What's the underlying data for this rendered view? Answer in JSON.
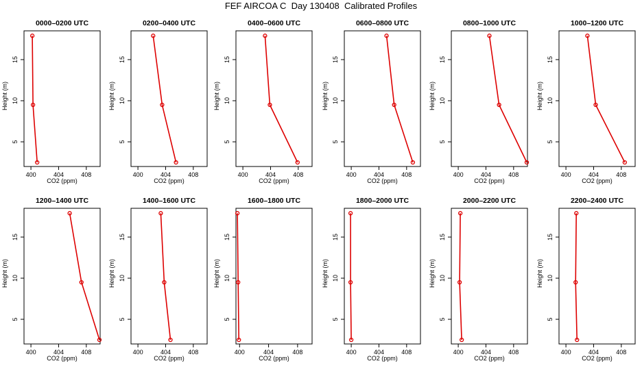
{
  "title": "FEF AIRCOA C  Day 130408  Calibrated Profiles",
  "colors": {
    "series": "#dd0000",
    "axis": "#000000"
  },
  "chart_data": [
    {
      "type": "line",
      "title": "0000–0200 UTC",
      "xlabel": "CO2 (ppm)",
      "ylabel": "Height (m)",
      "xlim": [
        399,
        410
      ],
      "ylim": [
        2,
        18.5
      ],
      "xticks": [
        "400",
        "404",
        "408"
      ],
      "yticks": [
        "5",
        "10",
        "15"
      ],
      "x": [
        400.2,
        400.3,
        400.9
      ],
      "y": [
        17.9,
        9.5,
        2.5
      ]
    },
    {
      "type": "line",
      "title": "0200–0400 UTC",
      "xlabel": "CO2 (ppm)",
      "ylabel": "Height (m)",
      "xlim": [
        399,
        410
      ],
      "ylim": [
        2,
        18.5
      ],
      "xticks": [
        "400",
        "404",
        "408"
      ],
      "yticks": [
        "5",
        "10",
        "15"
      ],
      "x": [
        402.2,
        403.5,
        405.5
      ],
      "y": [
        17.9,
        9.5,
        2.5
      ]
    },
    {
      "type": "line",
      "title": "0400–0600 UTC",
      "xlabel": "CO2 (ppm)",
      "ylabel": "Height (m)",
      "xlim": [
        399,
        410
      ],
      "ylim": [
        2,
        18.5
      ],
      "xticks": [
        "400",
        "404",
        "408"
      ],
      "yticks": [
        "5",
        "10",
        "15"
      ],
      "x": [
        403.2,
        403.9,
        407.9
      ],
      "y": [
        17.9,
        9.5,
        2.5
      ]
    },
    {
      "type": "line",
      "title": "0600–0800 UTC",
      "xlabel": "CO2 (ppm)",
      "ylabel": "Height (m)",
      "xlim": [
        399,
        410
      ],
      "ylim": [
        2,
        18.5
      ],
      "xticks": [
        "400",
        "404",
        "408"
      ],
      "yticks": [
        "5",
        "10",
        "15"
      ],
      "x": [
        405.1,
        406.2,
        408.9
      ],
      "y": [
        17.9,
        9.5,
        2.5
      ]
    },
    {
      "type": "line",
      "title": "0800–1000 UTC",
      "xlabel": "CO2 (ppm)",
      "ylabel": "Height (m)",
      "xlim": [
        399,
        410
      ],
      "ylim": [
        2,
        18.5
      ],
      "xticks": [
        "400",
        "404",
        "408"
      ],
      "yticks": [
        "5",
        "10",
        "15"
      ],
      "x": [
        404.5,
        405.9,
        409.9
      ],
      "y": [
        17.9,
        9.5,
        2.5
      ]
    },
    {
      "type": "line",
      "title": "1000–1200 UTC",
      "xlabel": "CO2 (ppm)",
      "ylabel": "Height (m)",
      "xlim": [
        399,
        410
      ],
      "ylim": [
        2,
        18.5
      ],
      "xticks": [
        "400",
        "404",
        "408"
      ],
      "yticks": [
        "5",
        "10",
        "15"
      ],
      "x": [
        403.1,
        404.3,
        408.5
      ],
      "y": [
        17.9,
        9.5,
        2.5
      ]
    },
    {
      "type": "line",
      "title": "1200–1400 UTC",
      "xlabel": "CO2 (ppm)",
      "ylabel": "Height (m)",
      "xlim": [
        399,
        410
      ],
      "ylim": [
        2,
        18.5
      ],
      "xticks": [
        "400",
        "404",
        "408"
      ],
      "yticks": [
        "5",
        "10",
        "15"
      ],
      "x": [
        405.6,
        407.3,
        409.9
      ],
      "y": [
        17.9,
        9.5,
        2.5
      ]
    },
    {
      "type": "line",
      "title": "1400–1600 UTC",
      "xlabel": "CO2 (ppm)",
      "ylabel": "Height (m)",
      "xlim": [
        399,
        410
      ],
      "ylim": [
        2,
        18.5
      ],
      "xticks": [
        "400",
        "404",
        "408"
      ],
      "yticks": [
        "5",
        "10",
        "15"
      ],
      "x": [
        403.3,
        403.8,
        404.7
      ],
      "y": [
        17.9,
        9.5,
        2.5
      ]
    },
    {
      "type": "line",
      "title": "1600–1800 UTC",
      "xlabel": "CO2 (ppm)",
      "ylabel": "Height (m)",
      "xlim": [
        399.5,
        410
      ],
      "ylim": [
        2,
        18.5
      ],
      "xticks": [
        "400",
        "404",
        "408"
      ],
      "yticks": [
        "5",
        "10",
        "15"
      ],
      "x": [
        399.7,
        399.8,
        399.9
      ],
      "y": [
        17.9,
        9.5,
        2.5
      ]
    },
    {
      "type": "line",
      "title": "1800–2000 UTC",
      "xlabel": "CO2 (ppm)",
      "ylabel": "Height (m)",
      "xlim": [
        399,
        410
      ],
      "ylim": [
        2,
        18.5
      ],
      "xticks": [
        "400",
        "404",
        "408"
      ],
      "yticks": [
        "5",
        "10",
        "15"
      ],
      "x": [
        399.9,
        399.9,
        400.0
      ],
      "y": [
        17.9,
        9.5,
        2.5
      ]
    },
    {
      "type": "line",
      "title": "2000–2200 UTC",
      "xlabel": "CO2 (ppm)",
      "ylabel": "Height (m)",
      "xlim": [
        399,
        410
      ],
      "ylim": [
        2,
        18.5
      ],
      "xticks": [
        "400",
        "404",
        "408"
      ],
      "yticks": [
        "5",
        "10",
        "15"
      ],
      "x": [
        400.3,
        400.2,
        400.5
      ],
      "y": [
        17.9,
        9.5,
        2.5
      ]
    },
    {
      "type": "line",
      "title": "2200–2400 UTC",
      "xlabel": "CO2 (ppm)",
      "ylabel": "Height (m)",
      "xlim": [
        399,
        410
      ],
      "ylim": [
        2,
        18.5
      ],
      "xticks": [
        "400",
        "404",
        "408"
      ],
      "yticks": [
        "5",
        "10",
        "15"
      ],
      "x": [
        401.5,
        401.4,
        401.6
      ],
      "y": [
        17.9,
        9.5,
        2.5
      ]
    }
  ]
}
